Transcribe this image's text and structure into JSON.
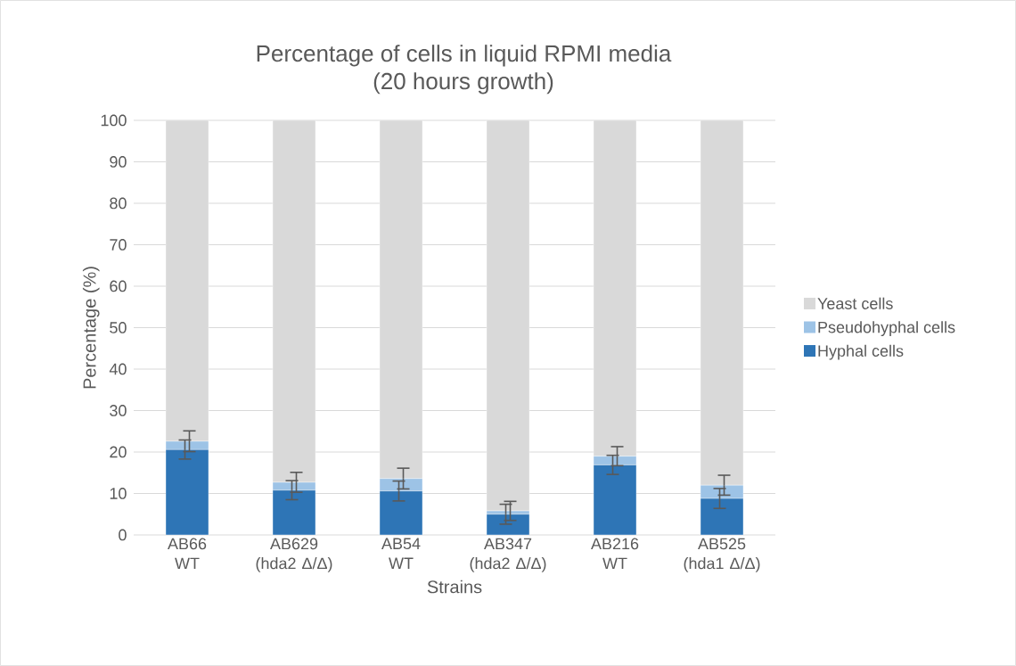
{
  "chart_data": {
    "type": "bar",
    "stacked": true,
    "title": "Percentage of cells in liquid RPMI media",
    "subtitle": "(20 hours growth)",
    "xlabel": "Strains",
    "ylabel": "Percentage (%)",
    "categories": [
      "AB66 WT",
      "AB629 (hda2 Δ/Δ)",
      "AB54 WT",
      "AB347 (hda2 Δ/Δ)",
      "AB216 WT",
      "AB525 (hda1 Δ/Δ)"
    ],
    "series": [
      {
        "name": "Hyphal cells",
        "color": "#2e75b6",
        "values": [
          20.6,
          10.8,
          10.6,
          5.0,
          16.9,
          8.8
        ],
        "errors": [
          2.3,
          2.3,
          2.4,
          2.4,
          2.3,
          2.4
        ]
      },
      {
        "name": "Pseudohyphal cells",
        "color": "#9dc3e6",
        "values": [
          2.0,
          1.9,
          3.0,
          0.8,
          2.1,
          3.2
        ],
        "errors": [
          2.5,
          2.4,
          2.5,
          2.3,
          2.3,
          2.4
        ]
      },
      {
        "name": "Yeast cells",
        "color": "#d9d9d9",
        "values": [
          77.4,
          87.3,
          86.4,
          94.2,
          81.0,
          88.0
        ]
      }
    ],
    "ylim": [
      0,
      100
    ],
    "yticks": [
      0,
      10,
      20,
      30,
      40,
      50,
      60,
      70,
      80,
      90,
      100
    ],
    "grid": "y",
    "legend": "right"
  }
}
